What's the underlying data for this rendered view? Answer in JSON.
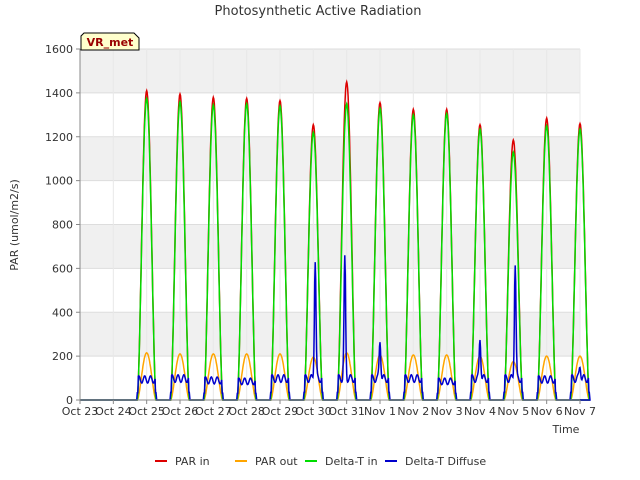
{
  "chart_data": {
    "type": "line",
    "title": "Photosynthetic Active Radiation",
    "xlabel": "Time",
    "ylabel": "PAR (umol/m2/s)",
    "badge": "VR_met",
    "ylim": [
      0,
      1600
    ],
    "xlim": [
      0,
      15
    ],
    "yticks": [
      0,
      200,
      400,
      600,
      800,
      1000,
      1200,
      1400,
      1600
    ],
    "ytick_labels": [
      "0",
      "200",
      "400",
      "600",
      "800",
      "1000",
      "1200",
      "1400",
      "1600"
    ],
    "xticks": [
      0,
      1,
      2,
      3,
      4,
      5,
      6,
      7,
      8,
      9,
      10,
      11,
      12,
      13,
      14,
      15
    ],
    "xtick_labels": [
      "Oct 23",
      "Oct 24",
      "Oct 25",
      "Oct 26",
      "Oct 27",
      "Oct 28",
      "Oct 29",
      "Oct 30",
      "Oct 31",
      "Nov 1",
      "Nov 2",
      "Nov 3",
      "Nov 4",
      "Nov 5",
      "Nov 6",
      "Nov 7"
    ],
    "grid": true,
    "legend_position": "bottom",
    "day_offsets": [
      0.7,
      1.7,
      2.7,
      3.7,
      4.7,
      5.7,
      6.7,
      7.7,
      8.7,
      9.7,
      10.7,
      11.7,
      12.7,
      13.7
    ],
    "daily_peaks": {
      "PAR in": [
        1410,
        1395,
        1380,
        1375,
        1365,
        1255,
        1450,
        1355,
        1325,
        1325,
        1255,
        1185,
        1285,
        1260
      ],
      "PAR out": [
        215,
        210,
        210,
        210,
        210,
        195,
        215,
        205,
        205,
        205,
        200,
        175,
        200,
        200
      ],
      "Delta-T in": [
        1375,
        1360,
        1345,
        1350,
        1340,
        1220,
        1350,
        1330,
        1300,
        1305,
        1235,
        1130,
        1250,
        1235
      ],
      "Delta-T Diffuse": [
        110,
        120,
        105,
        100,
        120,
        655,
        660,
        290,
        120,
        100,
        300,
        640,
        110,
        175
      ]
    },
    "series": [
      {
        "name": "PAR in",
        "color": "#dd0000"
      },
      {
        "name": "PAR out",
        "color": "#ffa500"
      },
      {
        "name": "Delta-T in",
        "color": "#00dd00"
      },
      {
        "name": "Delta-T Diffuse",
        "color": "#0000cc"
      }
    ]
  }
}
